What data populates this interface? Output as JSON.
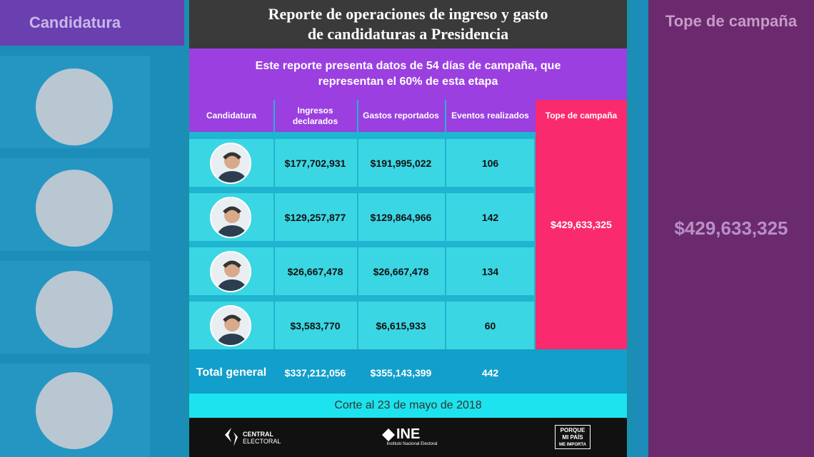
{
  "title_lines": [
    "Reporte de operaciones de ingreso y gasto",
    "de candidaturas a Presidencia"
  ],
  "subtitle_lines": [
    "Este reporte presenta datos de 54 días de campaña, que",
    "representan el 60% de esta etapa"
  ],
  "table": {
    "headers": [
      "Candidatura",
      "Ingresos declarados",
      "Gastos reportados",
      "Eventos realizados",
      "Tope de campaña"
    ],
    "rows": [
      [
        "$177,702,931",
        "$191,995,022",
        "106"
      ],
      [
        "$129,257,877",
        "$129,864,966",
        "142"
      ],
      [
        "$26,667,478",
        "$26,667,478",
        "134"
      ],
      [
        "$3,583,770",
        "$6,615,933",
        "60"
      ]
    ],
    "tope": "$429,633,325",
    "total": [
      "Total general",
      "$337,212,056",
      "$355,143,399",
      "442"
    ]
  },
  "corte": "Corte al 23 de mayo de 2018",
  "footer": {
    "central": "CENTRAL",
    "electoral": "ELECTORAL",
    "ine": "INE",
    "ine_full": "Instituto Nacional Electoral",
    "slogan_lines": [
      "PORQUE",
      "MI PAÍS",
      "ME IMPORTA"
    ]
  }
}
